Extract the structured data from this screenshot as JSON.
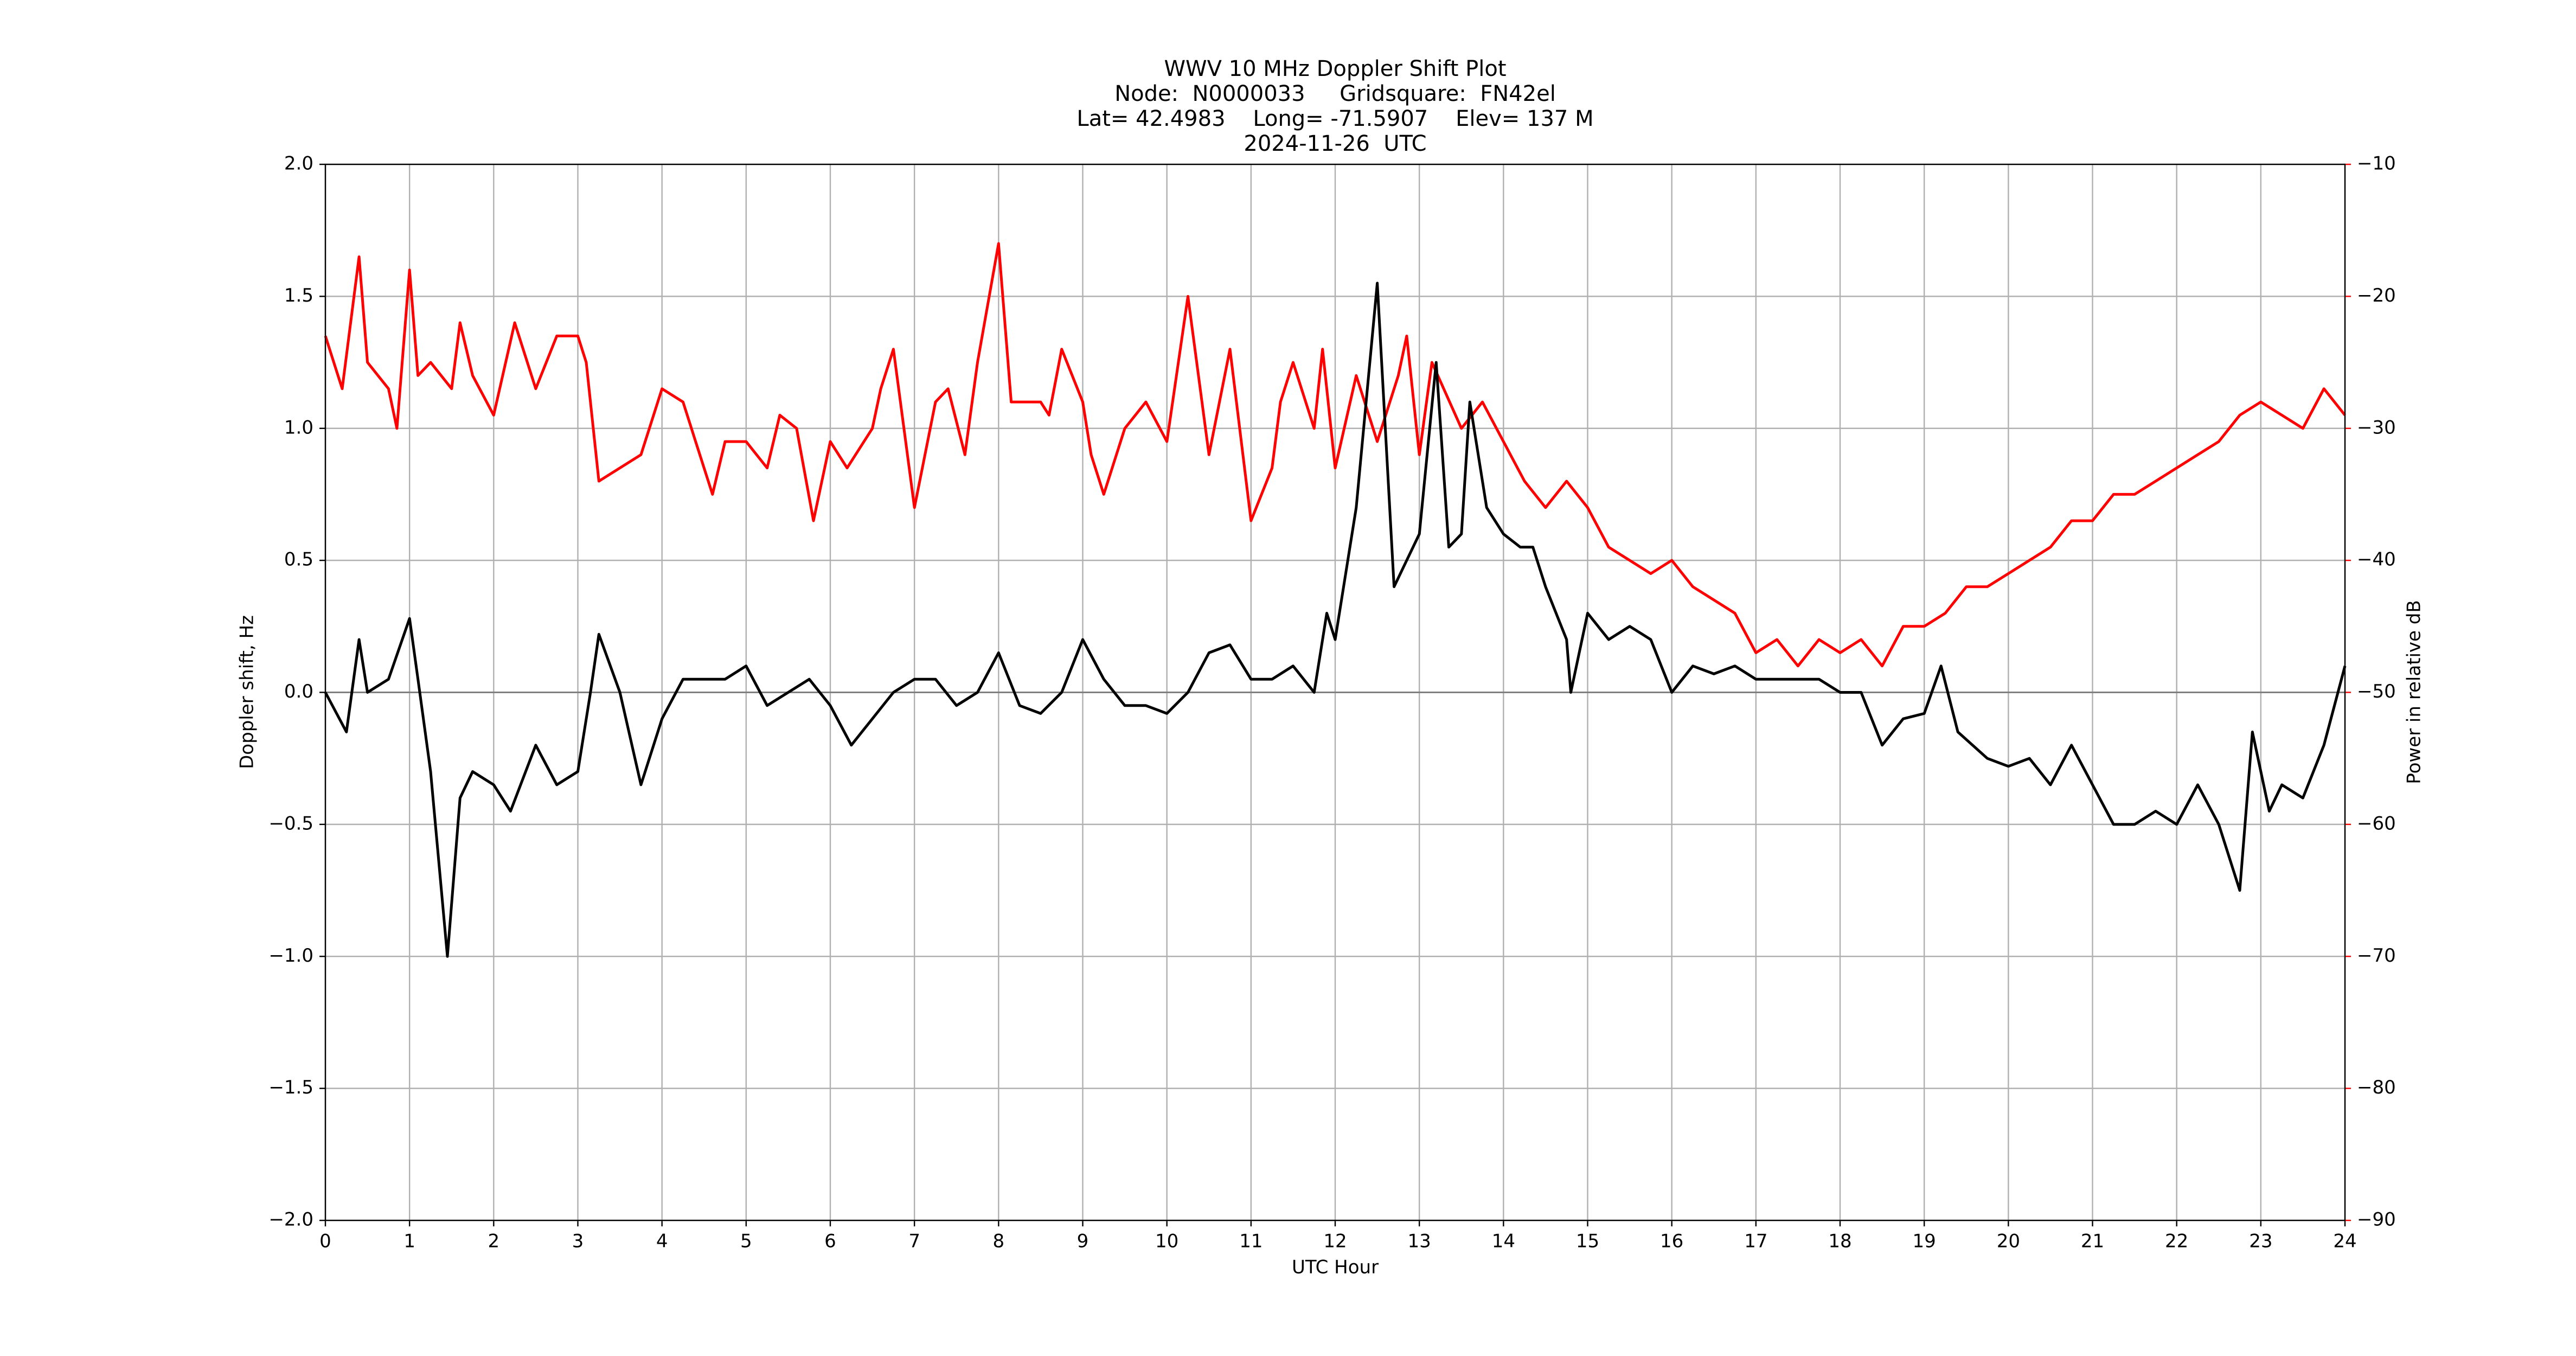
{
  "chart_data": {
    "type": "line",
    "title": [
      "WWV 10 MHz Doppler Shift Plot",
      "Node:  N0000033     Gridsquare:  FN42el",
      "Lat= 42.4983    Long= -71.5907    Elev= 137 M",
      "2024-11-26  UTC"
    ],
    "xlabel": "UTC Hour",
    "ylabel": "Doppler shift, Hz",
    "y2label": "Power in relative dB",
    "y2color": "#ff0000",
    "grid": true,
    "zero_line": true,
    "xlim": [
      0,
      24
    ],
    "xticks": [
      0,
      1,
      2,
      3,
      4,
      5,
      6,
      7,
      8,
      9,
      10,
      11,
      12,
      13,
      14,
      15,
      16,
      17,
      18,
      19,
      20,
      21,
      22,
      23,
      24
    ],
    "ylim": [
      -2,
      2
    ],
    "yticks": [
      {
        "value": -2,
        "label": "−2.0"
      },
      {
        "value": -1.5,
        "label": "−1.5"
      },
      {
        "value": -1,
        "label": "−1.0"
      },
      {
        "value": -0.5,
        "label": "−0.5"
      },
      {
        "value": 0,
        "label": "0.0"
      },
      {
        "value": 0.5,
        "label": "0.5"
      },
      {
        "value": 1,
        "label": "1.0"
      },
      {
        "value": 1.5,
        "label": "1.5"
      },
      {
        "value": 2,
        "label": "2.0"
      }
    ],
    "y2lim": [
      -90,
      -10
    ],
    "y2ticks": [
      {
        "value": -90,
        "label": "−90"
      },
      {
        "value": -80,
        "label": "−80"
      },
      {
        "value": -70,
        "label": "−70"
      },
      {
        "value": -60,
        "label": "−60"
      },
      {
        "value": -50,
        "label": "−50"
      },
      {
        "value": -40,
        "label": "−40"
      },
      {
        "value": -30,
        "label": "−30"
      },
      {
        "value": -20,
        "label": "−20"
      },
      {
        "value": -10,
        "label": "−10"
      }
    ],
    "series": [
      {
        "name": "Doppler shift",
        "color": "#000000",
        "x": [
          0,
          0.25,
          0.4,
          0.5,
          0.75,
          1.0,
          1.1,
          1.25,
          1.45,
          1.6,
          1.75,
          2.0,
          2.2,
          2.5,
          2.75,
          3.0,
          3.15,
          3.25,
          3.5,
          3.75,
          4.0,
          4.25,
          4.5,
          4.75,
          5.0,
          5.25,
          5.5,
          5.75,
          6.0,
          6.25,
          6.5,
          6.75,
          7.0,
          7.25,
          7.5,
          7.75,
          8.0,
          8.25,
          8.5,
          8.75,
          9.0,
          9.25,
          9.5,
          9.75,
          10.0,
          10.25,
          10.5,
          10.75,
          11.0,
          11.25,
          11.5,
          11.75,
          11.9,
          12.0,
          12.25,
          12.5,
          12.7,
          12.85,
          13.0,
          13.2,
          13.35,
          13.5,
          13.6,
          13.8,
          14.0,
          14.2,
          14.35,
          14.5,
          14.75,
          14.8,
          15.0,
          15.25,
          15.5,
          15.75,
          16.0,
          16.25,
          16.5,
          16.75,
          17.0,
          17.25,
          17.5,
          17.75,
          18.0,
          18.25,
          18.5,
          18.75,
          19.0,
          19.2,
          19.4,
          19.75,
          20.0,
          20.25,
          20.5,
          20.75,
          21.0,
          21.25,
          21.5,
          21.75,
          22.0,
          22.25,
          22.5,
          22.75,
          22.9,
          23.1,
          23.25,
          23.5,
          23.75,
          24.0
        ],
        "values": [
          0.0,
          -0.15,
          0.2,
          0.0,
          0.05,
          0.28,
          0.05,
          -0.3,
          -1.0,
          -0.4,
          -0.3,
          -0.35,
          -0.45,
          -0.2,
          -0.35,
          -0.3,
          0.0,
          0.22,
          0.0,
          -0.35,
          -0.1,
          0.05,
          0.05,
          0.05,
          0.1,
          -0.05,
          0.0,
          0.05,
          -0.05,
          -0.2,
          -0.1,
          0.0,
          0.05,
          0.05,
          -0.05,
          0.0,
          0.15,
          -0.05,
          -0.08,
          0.0,
          0.2,
          0.05,
          -0.05,
          -0.05,
          -0.08,
          0.0,
          0.15,
          0.18,
          0.05,
          0.05,
          0.1,
          0.0,
          0.3,
          0.2,
          0.7,
          1.55,
          0.4,
          0.5,
          0.6,
          1.25,
          0.55,
          0.6,
          1.1,
          0.7,
          0.6,
          0.55,
          0.55,
          0.4,
          0.2,
          0.0,
          0.3,
          0.2,
          0.25,
          0.2,
          0.0,
          0.1,
          0.07,
          0.1,
          0.05,
          0.05,
          0.05,
          0.05,
          0.0,
          0.0,
          -0.2,
          -0.1,
          -0.08,
          0.1,
          -0.15,
          -0.25,
          -0.28,
          -0.25,
          -0.35,
          -0.2,
          -0.35,
          -0.5,
          -0.5,
          -0.45,
          -0.5,
          -0.35,
          -0.5,
          -0.75,
          -0.15,
          -0.45,
          -0.35,
          -0.4,
          -0.2,
          0.1
        ]
      },
      {
        "name": "Power",
        "color": "#ff0000",
        "axis": "y2",
        "x": [
          0,
          0.2,
          0.4,
          0.5,
          0.75,
          0.85,
          1.0,
          1.1,
          1.25,
          1.5,
          1.6,
          1.75,
          2.0,
          2.25,
          2.5,
          2.75,
          3.0,
          3.1,
          3.25,
          3.5,
          3.75,
          4.0,
          4.25,
          4.4,
          4.6,
          4.75,
          5.0,
          5.25,
          5.4,
          5.6,
          5.8,
          6.0,
          6.2,
          6.5,
          6.6,
          6.75,
          7.0,
          7.25,
          7.4,
          7.6,
          7.75,
          8.0,
          8.15,
          8.5,
          8.6,
          8.75,
          9.0,
          9.1,
          9.25,
          9.5,
          9.75,
          10.0,
          10.25,
          10.5,
          10.75,
          11.0,
          11.25,
          11.35,
          11.5,
          11.75,
          11.85,
          12.0,
          12.25,
          12.5,
          12.75,
          12.85,
          13.0,
          13.15,
          13.5,
          13.75,
          14.0,
          14.25,
          14.5,
          14.75,
          15.0,
          15.25,
          15.5,
          15.75,
          16.0,
          16.25,
          16.5,
          16.75,
          17.0,
          17.25,
          17.5,
          17.75,
          18.0,
          18.25,
          18.5,
          18.75,
          19.0,
          19.25,
          19.5,
          19.75,
          20.0,
          20.25,
          20.5,
          20.75,
          21.0,
          21.25,
          21.5,
          21.75,
          22.0,
          22.25,
          22.5,
          22.75,
          23.0,
          23.25,
          23.5,
          23.75,
          24.0
        ],
        "values": [
          -23,
          -27,
          -17,
          -25,
          -27,
          -30,
          -18,
          -26,
          -25,
          -27,
          -22,
          -26,
          -29,
          -22,
          -27,
          -23,
          -23,
          -25,
          -34,
          -33,
          -32,
          -27,
          -28,
          -31,
          -35,
          -31,
          -31,
          -33,
          -29,
          -30,
          -37,
          -31,
          -33,
          -30,
          -27,
          -24,
          -36,
          -28,
          -27,
          -32,
          -25,
          -16,
          -28,
          -28,
          -29,
          -24,
          -28,
          -32,
          -35,
          -30,
          -28,
          -31,
          -20,
          -32,
          -24,
          -37,
          -33,
          -28,
          -25,
          -30,
          -24,
          -33,
          -26,
          -31,
          -26,
          -23,
          -32,
          -25,
          -30,
          -28,
          -31,
          -34,
          -36,
          -34,
          -36,
          -39,
          -40,
          -41,
          -40,
          -42,
          -43,
          -44,
          -47,
          -46,
          -48,
          -46,
          -47,
          -46,
          -48,
          -45,
          -45,
          -44,
          -42,
          -42,
          -41,
          -40,
          -39,
          -37,
          -37,
          -35,
          -35,
          -34,
          -33,
          -32,
          -31,
          -29,
          -28,
          -29,
          -30,
          -27,
          -29
        ]
      }
    ]
  }
}
